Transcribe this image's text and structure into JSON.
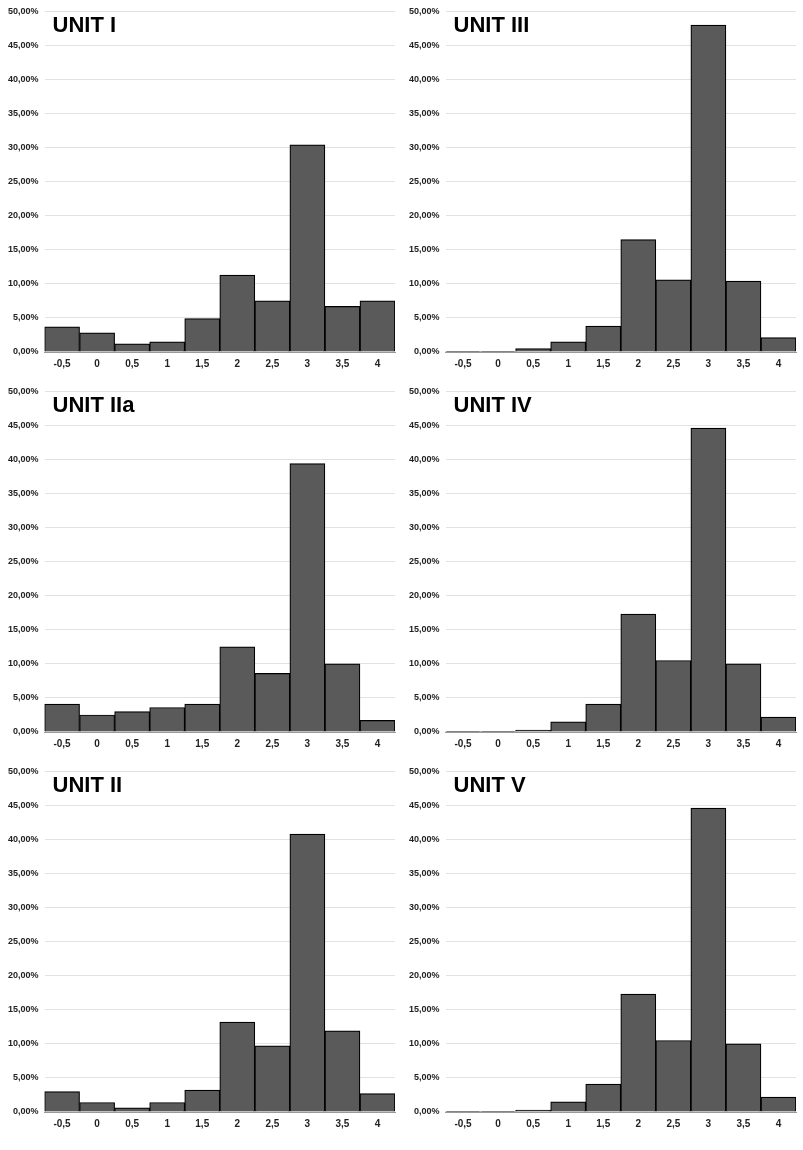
{
  "chart_data": [
    {
      "type": "bar",
      "title": "UNIT I",
      "categories": [
        "-0,5",
        "0",
        "0,5",
        "1",
        "1,5",
        "2",
        "2,5",
        "3",
        "3,5",
        "4"
      ],
      "values": [
        3.7,
        2.8,
        1.2,
        1.5,
        4.9,
        11.3,
        7.5,
        30.4,
        6.7,
        7.5
      ],
      "color": "#5a5a5a",
      "ylim": [
        0,
        50
      ],
      "yticks": [
        {
          "value": 0,
          "label": "0,00%"
        },
        {
          "value": 5,
          "label": "5,00%"
        },
        {
          "value": 10,
          "label": "10,00%"
        },
        {
          "value": 15,
          "label": "15,00%"
        },
        {
          "value": 20,
          "label": "20,00%"
        },
        {
          "value": 25,
          "label": "25,00%"
        },
        {
          "value": 30,
          "label": "30,00%"
        },
        {
          "value": 35,
          "label": "35,00%"
        },
        {
          "value": 40,
          "label": "40,00%"
        },
        {
          "value": 45,
          "label": "45,00%"
        },
        {
          "value": 50,
          "label": "50,00%"
        }
      ],
      "grid": "y",
      "legend": false
    },
    {
      "type": "bar",
      "title": "UNIT III",
      "categories": [
        "-0,5",
        "0",
        "0,5",
        "1",
        "1,5",
        "2",
        "2,5",
        "3",
        "3,5",
        "4"
      ],
      "values": [
        0.1,
        0.1,
        0.5,
        1.5,
        3.8,
        16.5,
        10.6,
        48,
        10.4,
        2.1
      ],
      "color": "#5a5a5a",
      "ylim": [
        0,
        50
      ],
      "yticks": [
        {
          "value": 0,
          "label": "0,00%"
        },
        {
          "value": 5,
          "label": "5,00%"
        },
        {
          "value": 10,
          "label": "10,00%"
        },
        {
          "value": 15,
          "label": "15,00%"
        },
        {
          "value": 20,
          "label": "20,00%"
        },
        {
          "value": 25,
          "label": "25,00%"
        },
        {
          "value": 30,
          "label": "30,00%"
        },
        {
          "value": 35,
          "label": "35,00%"
        },
        {
          "value": 40,
          "label": "40,00%"
        },
        {
          "value": 45,
          "label": "45,00%"
        },
        {
          "value": 50,
          "label": "50,00%"
        }
      ],
      "grid": "y",
      "legend": false
    },
    {
      "type": "bar",
      "title": "UNIT IIa",
      "categories": [
        "-0,5",
        "0",
        "0,5",
        "1",
        "1,5",
        "2",
        "2,5",
        "3",
        "3,5",
        "4"
      ],
      "values": [
        4.1,
        2.5,
        3,
        3.6,
        4.1,
        12.5,
        8.6,
        39.4,
        10,
        1.7
      ],
      "color": "#5a5a5a",
      "ylim": [
        0,
        50
      ],
      "yticks": [
        {
          "value": 0,
          "label": "0,00%"
        },
        {
          "value": 5,
          "label": "5,00%"
        },
        {
          "value": 10,
          "label": "10,00%"
        },
        {
          "value": 15,
          "label": "15,00%"
        },
        {
          "value": 20,
          "label": "20,00%"
        },
        {
          "value": 25,
          "label": "25,00%"
        },
        {
          "value": 30,
          "label": "30,00%"
        },
        {
          "value": 35,
          "label": "35,00%"
        },
        {
          "value": 40,
          "label": "40,00%"
        },
        {
          "value": 45,
          "label": "45,00%"
        },
        {
          "value": 50,
          "label": "50,00%"
        }
      ],
      "grid": "y",
      "legend": false
    },
    {
      "type": "bar",
      "title": "UNIT IV",
      "categories": [
        "-0,5",
        "0",
        "0,5",
        "1",
        "1,5",
        "2",
        "2,5",
        "3",
        "3,5",
        "4"
      ],
      "values": [
        0.1,
        0.1,
        0.3,
        1.5,
        4.1,
        17.3,
        10.5,
        44.6,
        10,
        2.2
      ],
      "color": "#5a5a5a",
      "ylim": [
        0,
        50
      ],
      "yticks": [
        {
          "value": 0,
          "label": "0,00%"
        },
        {
          "value": 5,
          "label": "5,00%"
        },
        {
          "value": 10,
          "label": "10,00%"
        },
        {
          "value": 15,
          "label": "15,00%"
        },
        {
          "value": 20,
          "label": "20,00%"
        },
        {
          "value": 25,
          "label": "25,00%"
        },
        {
          "value": 30,
          "label": "30,00%"
        },
        {
          "value": 35,
          "label": "35,00%"
        },
        {
          "value": 40,
          "label": "40,00%"
        },
        {
          "value": 45,
          "label": "45,00%"
        },
        {
          "value": 50,
          "label": "50,00%"
        }
      ],
      "grid": "y",
      "legend": false
    },
    {
      "type": "bar",
      "title": "UNIT II",
      "categories": [
        "-0,5",
        "0",
        "0,5",
        "1",
        "1,5",
        "2",
        "2,5",
        "3",
        "3,5",
        "4"
      ],
      "values": [
        3,
        1.4,
        0.6,
        1.4,
        3.2,
        13.2,
        9.7,
        40.8,
        11.9,
        2.7
      ],
      "color": "#5a5a5a",
      "ylim": [
        0,
        50
      ],
      "yticks": [
        {
          "value": 0,
          "label": "0,00%"
        },
        {
          "value": 5,
          "label": "5,00%"
        },
        {
          "value": 10,
          "label": "10,00%"
        },
        {
          "value": 15,
          "label": "15,00%"
        },
        {
          "value": 20,
          "label": "20,00%"
        },
        {
          "value": 25,
          "label": "25,00%"
        },
        {
          "value": 30,
          "label": "30,00%"
        },
        {
          "value": 35,
          "label": "35,00%"
        },
        {
          "value": 40,
          "label": "40,00%"
        },
        {
          "value": 45,
          "label": "45,00%"
        },
        {
          "value": 50,
          "label": "50,00%"
        }
      ],
      "grid": "y",
      "legend": false
    },
    {
      "type": "bar",
      "title": "UNIT V",
      "categories": [
        "-0,5",
        "0",
        "0,5",
        "1",
        "1,5",
        "2",
        "2,5",
        "3",
        "3,5",
        "4"
      ],
      "values": [
        0.1,
        0.1,
        0.3,
        1.5,
        4.1,
        17.3,
        10.5,
        44.6,
        10,
        2.2
      ],
      "color": "#5a5a5a",
      "ylim": [
        0,
        50
      ],
      "yticks": [
        {
          "value": 0,
          "label": "0,00%"
        },
        {
          "value": 5,
          "label": "5,00%"
        },
        {
          "value": 10,
          "label": "10,00%"
        },
        {
          "value": 15,
          "label": "15,00%"
        },
        {
          "value": 20,
          "label": "20,00%"
        },
        {
          "value": 25,
          "label": "25,00%"
        },
        {
          "value": 30,
          "label": "30,00%"
        },
        {
          "value": 35,
          "label": "35,00%"
        },
        {
          "value": 40,
          "label": "40,00%"
        },
        {
          "value": 45,
          "label": "45,00%"
        },
        {
          "value": 50,
          "label": "50,00%"
        }
      ],
      "grid": "y",
      "legend": false
    }
  ]
}
